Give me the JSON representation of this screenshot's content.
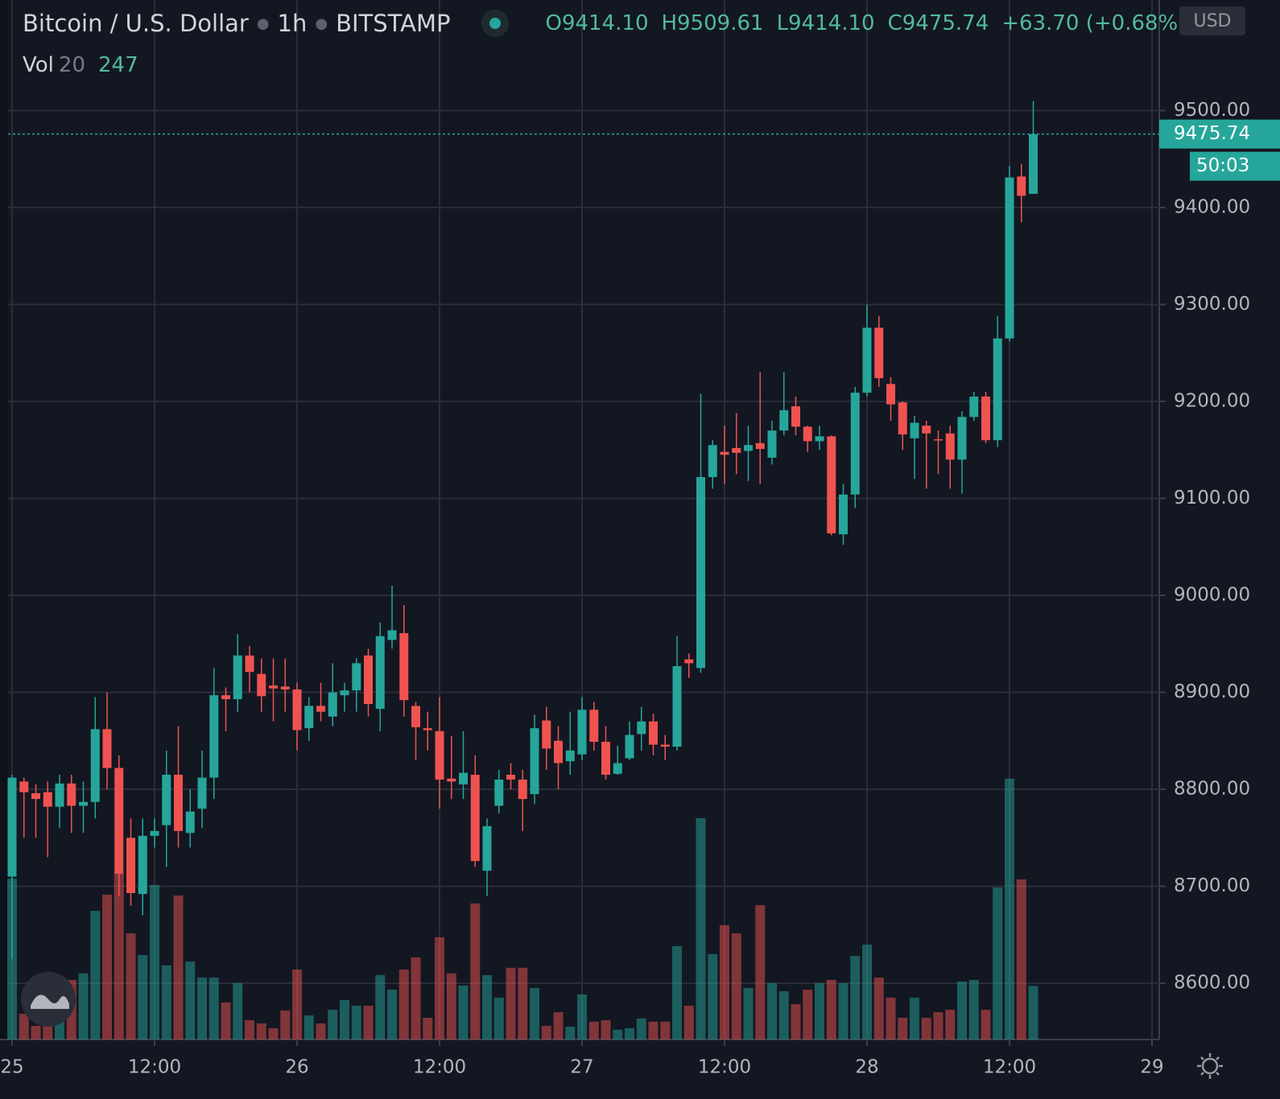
{
  "header": {
    "symbol": "Bitcoin / U.S. Dollar",
    "interval": "1h",
    "exchange": "BITSTAMP",
    "ohlc": [
      "O9414.10",
      "H9509.61",
      "L9414.10",
      "C9475.74",
      "+63.70 (+0.68%)"
    ],
    "currency": "USD",
    "volume_label": "Vol",
    "volume_length": "20",
    "countdown": "50:03"
  },
  "chart_data": {
    "type": "candlestick",
    "title": "Bitcoin / U.S. Dollar",
    "up_color": "#26a69a",
    "down_color": "#ef5350",
    "grid": true,
    "x": [
      0,
      1,
      2,
      3,
      4,
      5,
      6,
      7,
      8,
      9,
      10,
      11,
      12,
      13,
      14,
      15,
      16,
      17,
      18,
      19,
      20,
      21,
      22,
      23,
      24,
      25,
      26,
      27,
      28,
      29,
      30,
      31,
      32,
      33,
      34,
      35,
      36,
      37,
      38,
      39,
      40,
      41,
      42,
      43,
      44,
      45,
      46,
      47,
      48,
      49,
      50,
      51,
      52,
      53,
      54,
      55,
      56,
      57,
      58,
      59,
      60,
      61,
      62,
      63,
      64,
      65,
      66,
      67,
      68,
      69,
      70,
      71,
      72,
      73,
      74,
      75,
      76,
      77,
      78,
      79,
      80,
      81,
      82,
      83,
      84,
      85,
      86
    ],
    "open": [
      8710,
      8808,
      8796,
      8797,
      8782,
      8806,
      8783,
      8787,
      8862,
      8822,
      8750,
      8692,
      8752,
      8763,
      8815,
      8755,
      8780,
      8812,
      8897,
      8893,
      8938,
      8919,
      8907,
      8906,
      8903,
      8863,
      8886,
      8875,
      8897,
      8902,
      8938,
      8883,
      8954,
      8961,
      8886,
      8863,
      8860,
      8811,
      8805,
      8815,
      8716,
      8783,
      8815,
      8810,
      8795,
      8871,
      8850,
      8829,
      8836,
      8882,
      8849,
      8816,
      8832,
      8857,
      8870,
      8846,
      8844,
      8934,
      8925,
      9122,
      9148,
      9152,
      9149,
      9157,
      9142,
      9170,
      9195,
      9174,
      9159,
      9164,
      9063,
      9104,
      9209,
      9276,
      9218,
      9199,
      9162,
      9175,
      9161,
      9167,
      9140,
      9184,
      9205,
      9160,
      9265,
      9432,
      9414.1
    ],
    "high": [
      8815,
      8812,
      8805,
      8808,
      8815,
      8815,
      8808,
      8895,
      8900,
      8835,
      8770,
      8770,
      8770,
      8840,
      8865,
      8800,
      8840,
      8925,
      8905,
      8960,
      8948,
      8935,
      8935,
      8935,
      8910,
      8895,
      8910,
      8930,
      8910,
      8935,
      8945,
      8972,
      9010,
      8990,
      8890,
      8880,
      8895,
      8855,
      8860,
      8835,
      8770,
      8820,
      8827,
      8820,
      8877,
      8885,
      8865,
      8880,
      8895,
      8890,
      8865,
      8845,
      8870,
      8885,
      8878,
      8856,
      8958,
      8940,
      9208,
      9160,
      9175,
      9188,
      9175,
      9230,
      9180,
      9230,
      9205,
      9175,
      9175,
      9165,
      9115,
      9215,
      9300,
      9288,
      9225,
      9200,
      9185,
      9180,
      9170,
      9175,
      9190,
      9210,
      9210,
      9288,
      9443,
      9445,
      9509.61
    ],
    "low": [
      8625,
      8750,
      8750,
      8730,
      8760,
      8755,
      8755,
      8770,
      8800,
      8690,
      8680,
      8670,
      8740,
      8720,
      8740,
      8740,
      8760,
      8790,
      8860,
      8880,
      8900,
      8880,
      8870,
      8880,
      8840,
      8850,
      8870,
      8865,
      8880,
      8880,
      8875,
      8860,
      8945,
      8875,
      8830,
      8840,
      8780,
      8790,
      8790,
      8720,
      8690,
      8775,
      8800,
      8757,
      8785,
      8820,
      8800,
      8815,
      8830,
      8840,
      8810,
      8815,
      8830,
      8840,
      8835,
      8830,
      8840,
      8915,
      8920,
      9110,
      9115,
      9125,
      9118,
      9115,
      9135,
      9165,
      9165,
      9148,
      9150,
      9062,
      9052,
      9090,
      9205,
      9215,
      9180,
      9150,
      9120,
      9110,
      9125,
      9110,
      9105,
      9180,
      9157,
      9153,
      9262,
      9385,
      9414.1
    ],
    "close": [
      8812,
      8797,
      8790,
      8782,
      8806,
      8783,
      8787,
      8862,
      8822,
      8713,
      8693,
      8752,
      8757,
      8815,
      8757,
      8777,
      8812,
      8897,
      8893,
      8938,
      8921,
      8896,
      8904,
      8903,
      8861,
      8886,
      8880,
      8900,
      8902,
      8930,
      8888,
      8958,
      8964,
      8892,
      8864,
      8861,
      8810,
      8808,
      8817,
      8726,
      8762,
      8810,
      8810,
      8790,
      8863,
      8842,
      8827,
      8840,
      8882,
      8849,
      8815,
      8827,
      8856,
      8870,
      8846,
      8844,
      8927,
      8930,
      9122,
      9155,
      9145,
      9147,
      9155,
      9151,
      9170,
      9191,
      9174,
      9159,
      9164,
      9064,
      9104,
      9209,
      9276,
      9224,
      9197,
      9166,
      9178,
      9167,
      9160,
      9140,
      9184,
      9205,
      9160,
      9265,
      9431,
      9412,
      9475.74
    ],
    "volume": [
      743,
      119,
      63,
      156,
      193,
      275,
      305,
      594,
      669,
      769,
      490,
      390,
      713,
      342,
      665,
      360,
      286,
      286,
      171,
      260,
      89,
      74,
      52,
      134,
      323,
      111,
      74,
      137,
      182,
      156,
      156,
      297,
      230,
      323,
      379,
      100,
      472,
      305,
      249,
      628,
      297,
      193,
      331,
      331,
      238,
      63,
      126,
      59,
      208,
      82,
      89,
      45,
      52,
      97,
      82,
      82,
      431,
      156,
      1022,
      394,
      528,
      490,
      238,
      620,
      260,
      223,
      163,
      230,
      260,
      275,
      260,
      386,
      438,
      286,
      193,
      100,
      193,
      100,
      126,
      137,
      267,
      275,
      137,
      702,
      1204,
      739,
      247
    ],
    "xlim": [
      -0.34,
      96.61
    ],
    "xticks": [
      {
        "value": 0,
        "label": "25"
      },
      {
        "value": 12,
        "label": "12:00"
      },
      {
        "value": 24,
        "label": "26"
      },
      {
        "value": 36,
        "label": "12:00"
      },
      {
        "value": 48,
        "label": "27"
      },
      {
        "value": 60,
        "label": "12:00"
      },
      {
        "value": 72,
        "label": "28"
      },
      {
        "value": 84,
        "label": "12:00"
      },
      {
        "value": 96,
        "label": "29"
      }
    ],
    "ylim": [
      8542,
      9614
    ],
    "yticks": [
      {
        "value": 8600,
        "label": "8600.00"
      },
      {
        "value": 8700,
        "label": "8700.00"
      },
      {
        "value": 8800,
        "label": "8800.00"
      },
      {
        "value": 8900,
        "label": "8900.00"
      },
      {
        "value": 9000,
        "label": "9000.00"
      },
      {
        "value": 9100,
        "label": "9100.00"
      },
      {
        "value": 9200,
        "label": "9200.00"
      },
      {
        "value": 9300,
        "label": "9300.00"
      },
      {
        "value": 9400,
        "label": "9400.00"
      },
      {
        "value": 9500,
        "label": "9500.00"
      }
    ],
    "vlim": [
      0,
      4800
    ]
  }
}
